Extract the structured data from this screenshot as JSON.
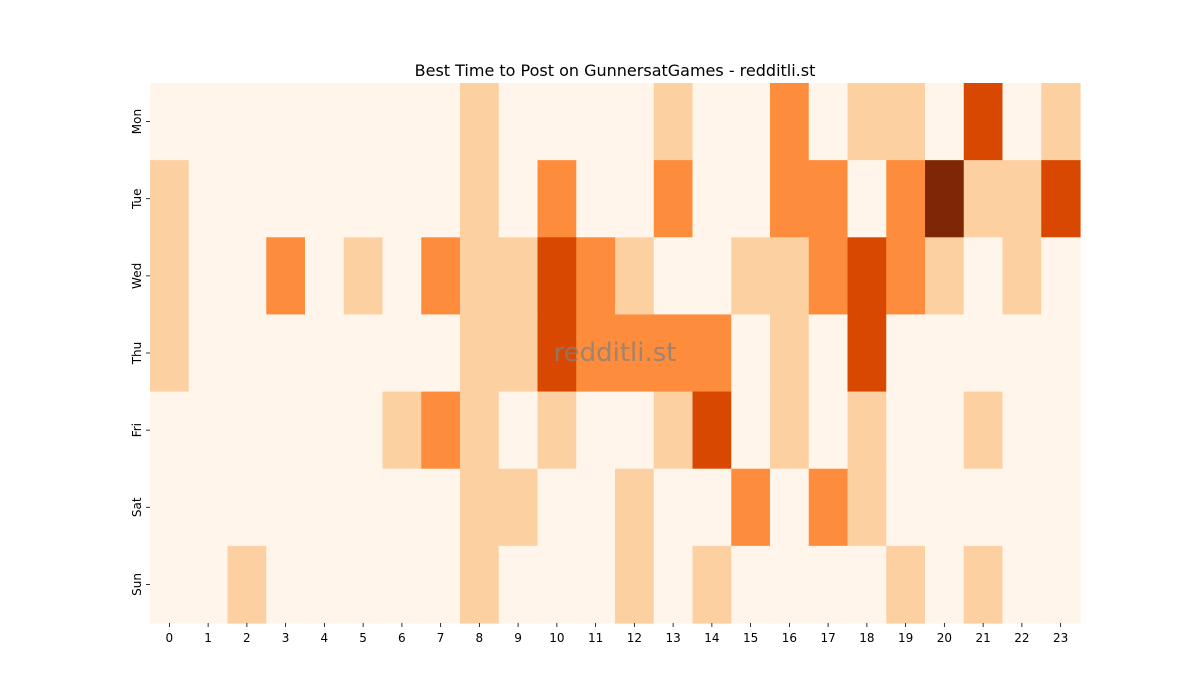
{
  "chart_data": {
    "type": "heatmap",
    "title": "Best Time to Post on GunnersatGames - redditli.st",
    "watermark": "redditli.st",
    "xlabel": "",
    "ylabel": "",
    "x_categories": [
      "0",
      "1",
      "2",
      "3",
      "4",
      "5",
      "6",
      "7",
      "8",
      "9",
      "10",
      "11",
      "12",
      "13",
      "14",
      "15",
      "16",
      "17",
      "18",
      "19",
      "20",
      "21",
      "22",
      "23"
    ],
    "y_categories": [
      "Mon",
      "Tue",
      "Wed",
      "Thu",
      "Fri",
      "Sat",
      "Sun"
    ],
    "values": [
      [
        0,
        0,
        0,
        0,
        0,
        0,
        0,
        0,
        1,
        0,
        0,
        0,
        0,
        1,
        0,
        0,
        2,
        0,
        1,
        1,
        0,
        3,
        0,
        1
      ],
      [
        1,
        0,
        0,
        0,
        0,
        0,
        0,
        0,
        1,
        0,
        2,
        0,
        0,
        2,
        0,
        0,
        2,
        2,
        0,
        2,
        4,
        1,
        1,
        3
      ],
      [
        1,
        0,
        0,
        2,
        0,
        1,
        0,
        2,
        1,
        1,
        3,
        2,
        1,
        0,
        0,
        1,
        1,
        2,
        3,
        2,
        1,
        0,
        1,
        0
      ],
      [
        1,
        0,
        0,
        0,
        0,
        0,
        0,
        0,
        1,
        1,
        3,
        2,
        2,
        2,
        2,
        0,
        1,
        0,
        3,
        0,
        0,
        0,
        0,
        0
      ],
      [
        0,
        0,
        0,
        0,
        0,
        0,
        1,
        2,
        1,
        0,
        1,
        0,
        0,
        1,
        3,
        0,
        1,
        0,
        1,
        0,
        0,
        1,
        0,
        0
      ],
      [
        0,
        0,
        0,
        0,
        0,
        0,
        0,
        0,
        1,
        1,
        0,
        0,
        1,
        0,
        0,
        2,
        0,
        2,
        1,
        0,
        0,
        0,
        0,
        0
      ],
      [
        0,
        0,
        1,
        0,
        0,
        0,
        0,
        0,
        1,
        0,
        0,
        0,
        1,
        0,
        1,
        0,
        0,
        0,
        0,
        1,
        0,
        1,
        0,
        0
      ]
    ],
    "color_scale": [
      "#fff5eb",
      "#fdd0a2",
      "#fd8d3c",
      "#d94801",
      "#7f2704"
    ],
    "colormap": "Oranges",
    "colorbar": false,
    "grid": false
  }
}
